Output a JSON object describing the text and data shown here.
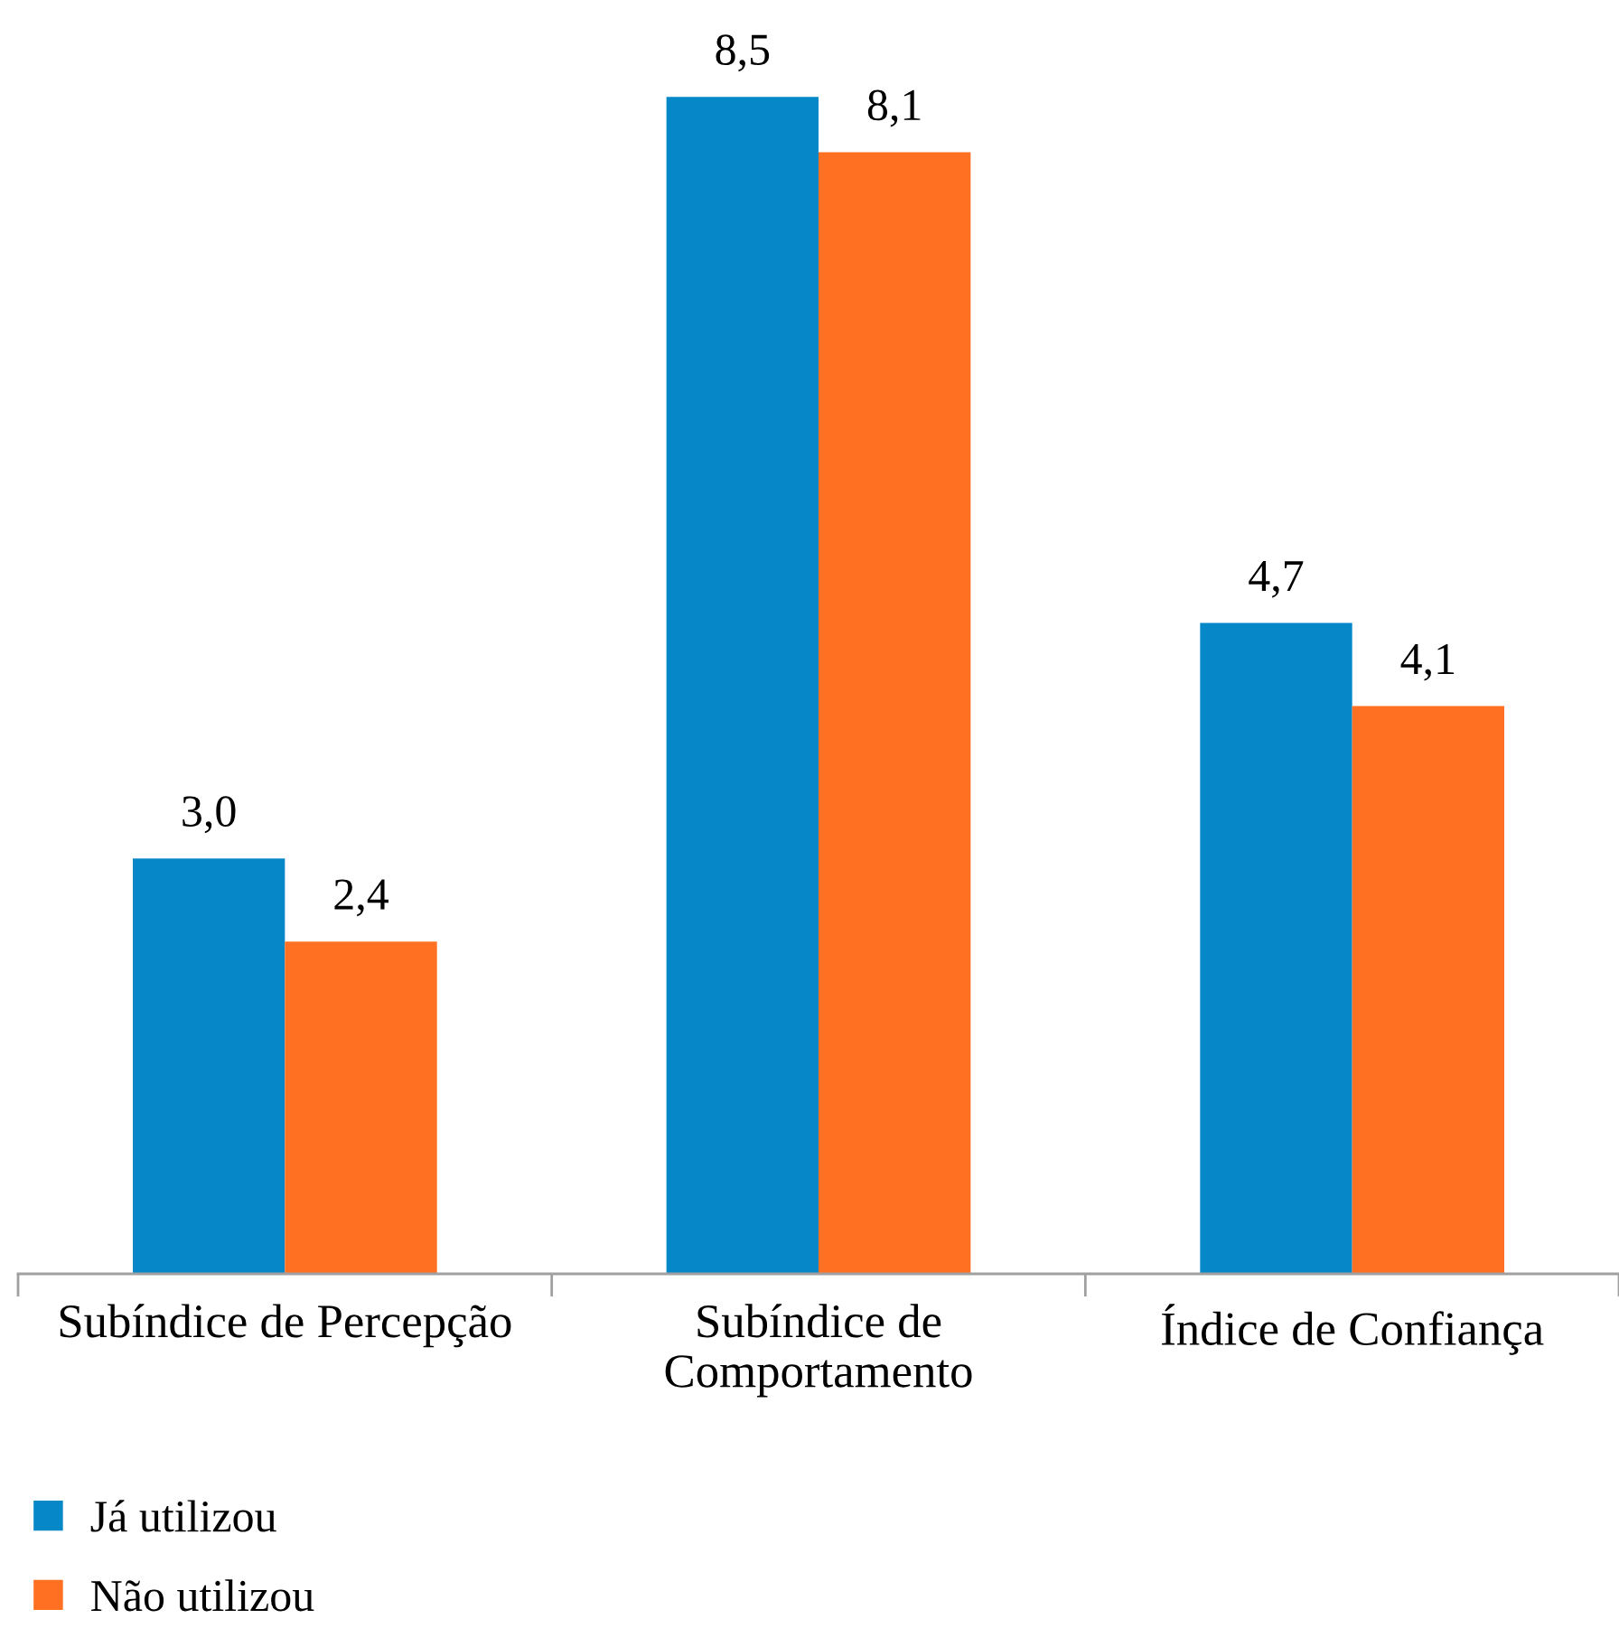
{
  "chart_data": {
    "type": "bar",
    "categories": [
      "Subíndice de Percepção",
      "Subíndice de\nComportamento",
      "Índice de Confiança"
    ],
    "series": [
      {
        "name": "Já utilizou",
        "color": "#0688c8",
        "values": [
          3.0,
          8.5,
          4.7
        ],
        "value_labels": [
          "3,0",
          "8,5",
          "4,7"
        ]
      },
      {
        "name": "Não utilizou",
        "color": "#ff7022",
        "values": [
          2.4,
          8.1,
          4.1
        ],
        "value_labels": [
          "2,4",
          "8,1",
          "4,1"
        ]
      }
    ],
    "tick_labels": "x",
    "legend": "bottom left",
    "grid": false
  }
}
